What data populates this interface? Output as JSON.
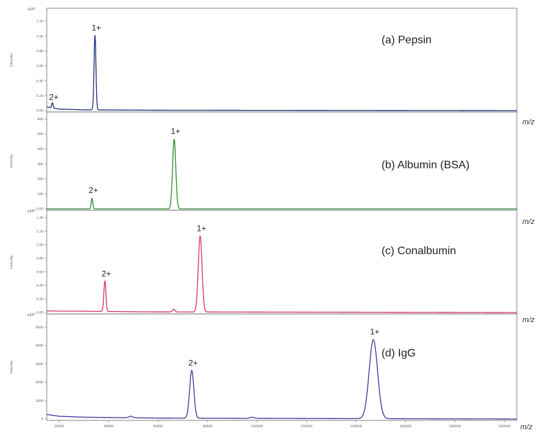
{
  "chart_data": [
    {
      "type": "line",
      "title": "(a) Pepsin",
      "ylabel": "Intensity",
      "y_multiplier": "x10⁴",
      "yticks": [
        "0.00",
        "0.20",
        "0.40",
        "0.60",
        "0.80",
        "1.00",
        "1.20"
      ],
      "ylim": [
        0,
        1.32
      ],
      "color": "#1f2f7a",
      "peaks": [
        {
          "label": "1+",
          "x": 34500,
          "y": 1.0,
          "width": 380
        },
        {
          "label": "2+",
          "x": 17300,
          "y": 0.07,
          "width": 280
        }
      ],
      "baseline": [
        [
          15000,
          0.05
        ],
        [
          20000,
          0.02
        ],
        [
          30000,
          0.01
        ],
        [
          60000,
          0.005
        ],
        [
          205000,
          0.0
        ]
      ]
    },
    {
      "type": "line",
      "title": "(b) Albumin (BSA)",
      "ylabel": "Intensity",
      "y_multiplier": "",
      "yticks": [
        "0.00",
        "100",
        "200",
        "300",
        "400",
        "500",
        "600"
      ],
      "ylim": [
        0,
        620
      ],
      "color": "#2e8b2e",
      "peaks": [
        {
          "label": "1+",
          "x": 66500,
          "y": 465,
          "width": 650
        },
        {
          "label": "2+",
          "x": 33300,
          "y": 70,
          "width": 320
        }
      ],
      "baseline": []
    },
    {
      "type": "line",
      "title": "(c) Conalbumin",
      "ylabel": "Intensity",
      "y_multiplier": "x10⁴",
      "yticks": [
        "0.00",
        "0.20",
        "0.40",
        "0.60",
        "0.80",
        "1.00",
        "1.20",
        "1.40"
      ],
      "ylim": [
        0,
        1.45
      ],
      "color": "#d6336c",
      "peaks": [
        {
          "label": "1+",
          "x": 77000,
          "y": 1.12,
          "width": 750
        },
        {
          "label": "2+",
          "x": 38500,
          "y": 0.45,
          "width": 420
        },
        {
          "label": "",
          "x": 66300,
          "y": 0.04,
          "width": 500
        }
      ],
      "baseline": [
        [
          15000,
          0.025
        ],
        [
          20000,
          0.02
        ],
        [
          30000,
          0.02
        ],
        [
          54000,
          0.01
        ],
        [
          205000,
          0.0
        ]
      ]
    },
    {
      "type": "line",
      "title": "(d) IgG",
      "ylabel": "Intensity",
      "y_multiplier": "x10⁴",
      "yticks": [
        "0",
        "1000",
        "2000",
        "3000",
        "4000",
        "5000"
      ],
      "ylim": [
        0,
        5500
      ],
      "color": "#3b3a9c",
      "peaks": [
        {
          "label": "1+",
          "x": 147000,
          "y": 4300,
          "width": 1700
        },
        {
          "label": "2+",
          "x": 73600,
          "y": 2600,
          "width": 850
        },
        {
          "label": "",
          "x": 49000,
          "y": 80,
          "width": 800
        },
        {
          "label": "",
          "x": 98000,
          "y": 60,
          "width": 800
        }
      ],
      "baseline": [
        [
          15000,
          250
        ],
        [
          20000,
          150
        ],
        [
          30000,
          100
        ],
        [
          60000,
          50
        ],
        [
          205000,
          0
        ]
      ],
      "xticks": [
        "20000",
        "40000",
        "60000",
        "80000",
        "100000",
        "120000",
        "140000",
        "160000",
        "180000",
        "200000"
      ]
    }
  ],
  "x_axis": {
    "unit_label": "m/z",
    "xlim": [
      15000,
      205000
    ],
    "tick_values": [
      20000,
      40000,
      60000,
      80000,
      100000,
      120000,
      140000,
      160000,
      180000,
      200000
    ]
  }
}
